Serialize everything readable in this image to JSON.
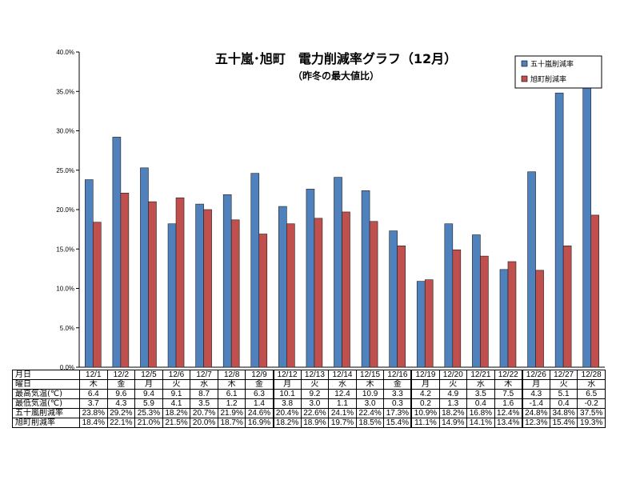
{
  "chart_data": {
    "type": "bar",
    "title": "五十嵐･旭町　電力削減率グラフ（12月）",
    "subtitle": "（昨冬の最大値比）",
    "categories": [
      "12/1",
      "12/2",
      "12/5",
      "12/6",
      "12/7",
      "12/8",
      "12/9",
      "12/12",
      "12/13",
      "12/14",
      "12/15",
      "12/16",
      "12/19",
      "12/20",
      "12/21",
      "12/22",
      "12/26",
      "12/27",
      "12/28"
    ],
    "ylim": [
      0,
      40
    ],
    "yticks": [
      "0.0%",
      "5.0%",
      "10.0%",
      "15.0%",
      "20.0%",
      "25.0%",
      "30.0%",
      "35.0%",
      "40.0%"
    ],
    "grid": false,
    "legend_position": "top-right",
    "series": [
      {
        "name": "五十嵐削減率",
        "color": "#4f81bd",
        "values": [
          23.8,
          29.2,
          25.3,
          18.2,
          20.7,
          21.9,
          24.6,
          20.4,
          22.6,
          24.1,
          22.4,
          17.3,
          10.9,
          18.2,
          16.8,
          12.4,
          24.8,
          34.8,
          37.5
        ]
      },
      {
        "name": "旭町削減率",
        "color": "#c0504d",
        "values": [
          18.4,
          22.1,
          21.0,
          21.5,
          20.0,
          18.7,
          16.9,
          18.2,
          18.9,
          19.7,
          18.5,
          15.4,
          11.1,
          14.9,
          14.1,
          13.4,
          12.3,
          15.4,
          19.3
        ]
      }
    ]
  },
  "table": {
    "row_labels": {
      "date": "月日",
      "weekday": "曜日",
      "max_temp": "最高気温(℃)",
      "min_temp": "最低気温(℃)",
      "igarashi": "五十嵐削減率",
      "asahimachi": "旭町削減率"
    },
    "dates": [
      "12/1",
      "12/2",
      "12/5",
      "12/6",
      "12/7",
      "12/8",
      "12/9",
      "12/12",
      "12/13",
      "12/14",
      "12/15",
      "12/16",
      "12/19",
      "12/20",
      "12/21",
      "12/22",
      "12/26",
      "12/27",
      "12/28"
    ],
    "weekdays": [
      "木",
      "金",
      "月",
      "火",
      "水",
      "木",
      "金",
      "月",
      "火",
      "水",
      "木",
      "金",
      "月",
      "火",
      "水",
      "木",
      "月",
      "火",
      "水"
    ],
    "max_temp": [
      "6.4",
      "9.6",
      "9.4",
      "9.1",
      "8.7",
      "6.1",
      "6.3",
      "10.1",
      "9.2",
      "12.4",
      "10.9",
      "3.3",
      "4.2",
      "4.9",
      "3.5",
      "7.5",
      "4.3",
      "5.1",
      "6.5"
    ],
    "min_temp": [
      "3.7",
      "4.3",
      "5.9",
      "4.1",
      "3.5",
      "1.2",
      "1.4",
      "3.8",
      "3.0",
      "1.1",
      "3.0",
      "0.3",
      "0.2",
      "1.3",
      "0.4",
      "1.6",
      "-1.4",
      "0.4",
      "-0.2"
    ],
    "igarashi": [
      "23.8%",
      "29.2%",
      "25.3%",
      "18.2%",
      "20.7%",
      "21.9%",
      "24.6%",
      "20.4%",
      "22.6%",
      "24.1%",
      "22.4%",
      "17.3%",
      "10.9%",
      "18.2%",
      "16.8%",
      "12.4%",
      "24.8%",
      "34.8%",
      "37.5%"
    ],
    "asahimachi": [
      "18.4%",
      "22.1%",
      "21.0%",
      "21.5%",
      "20.0%",
      "18.7%",
      "16.9%",
      "18.2%",
      "18.9%",
      "19.7%",
      "18.5%",
      "15.4%",
      "11.1%",
      "14.9%",
      "14.1%",
      "13.4%",
      "12.3%",
      "15.4%",
      "19.3%"
    ]
  }
}
